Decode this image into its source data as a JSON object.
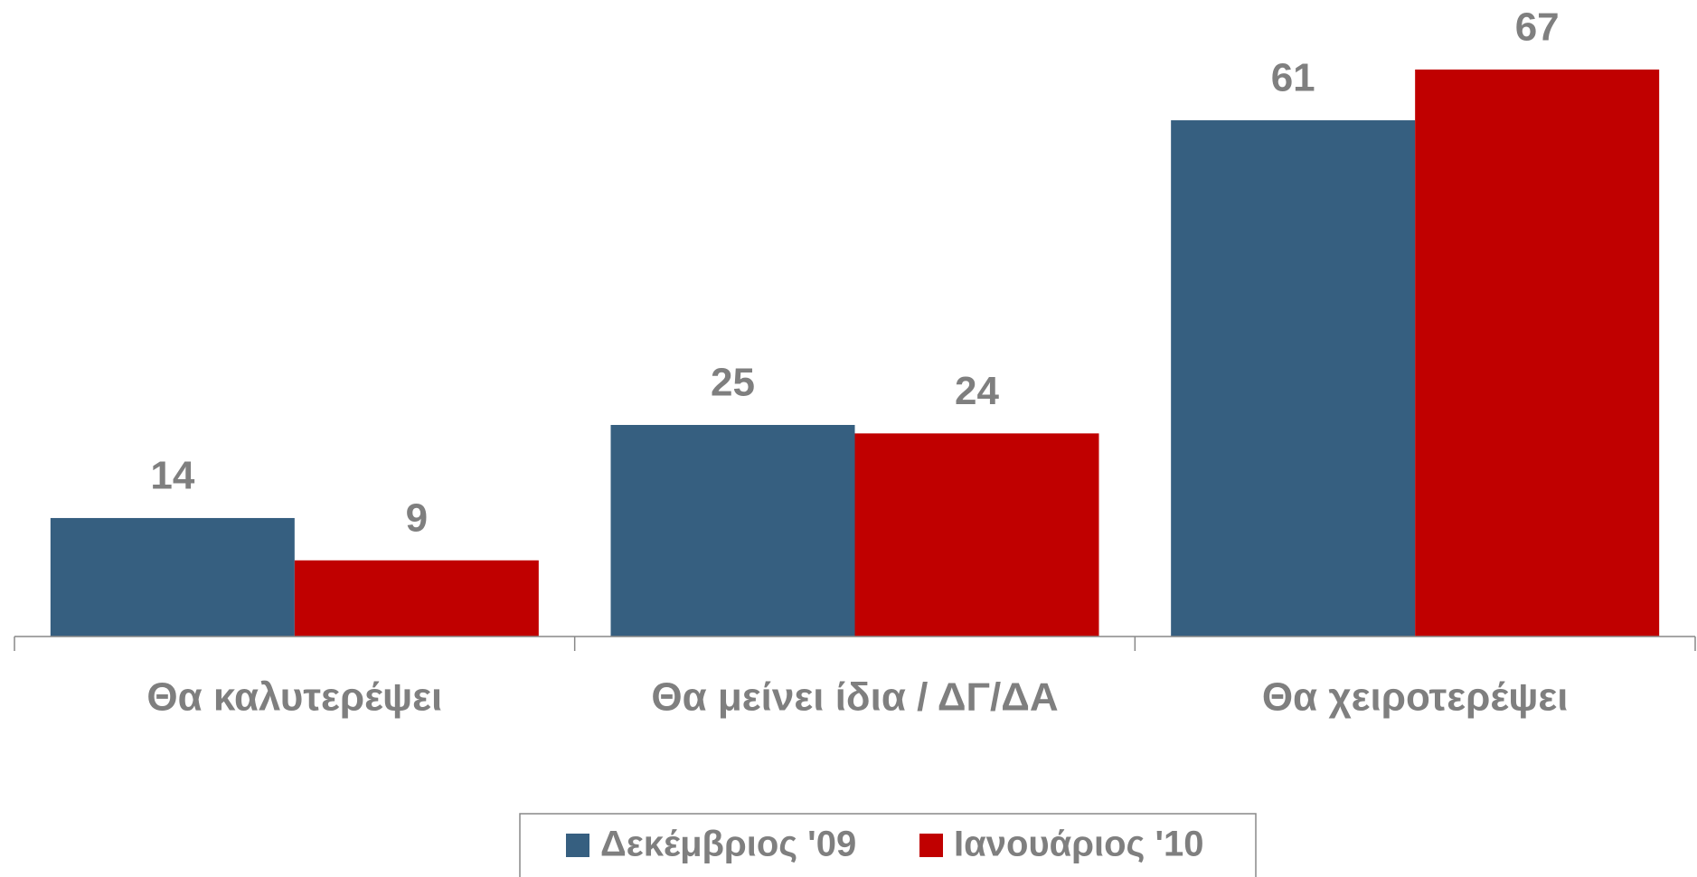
{
  "chart_data": {
    "type": "bar",
    "categories": [
      "Θα καλυτερέψει",
      "Θα μείνει ίδια / ΔΓ/ΔΑ",
      "Θα χειροτερέψει"
    ],
    "series": [
      {
        "name": "Δεκέμβριος '09",
        "color": "#365f80",
        "values": [
          14,
          25,
          61
        ]
      },
      {
        "name": "Ιανουάριος '10",
        "color": "#c00000",
        "values": [
          9,
          24,
          67
        ]
      }
    ],
    "ylim": [
      0,
      75
    ],
    "grid": false,
    "legend": "bottom"
  }
}
